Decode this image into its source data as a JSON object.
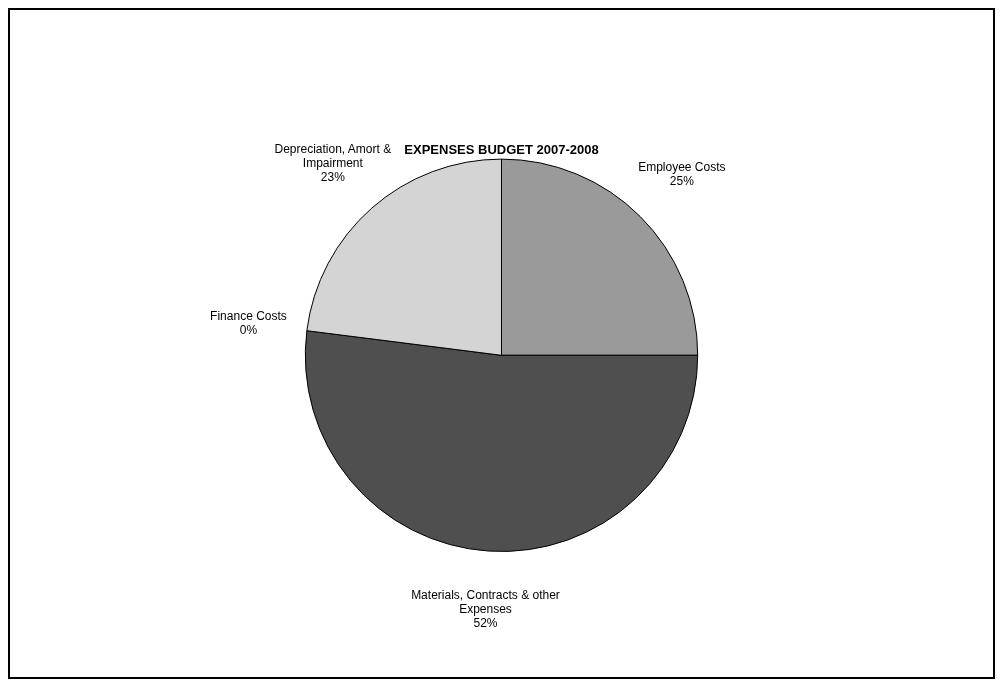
{
  "chart_data": {
    "type": "pie",
    "title": "EXPENSES BUDGET 2007-2008",
    "categories": [
      "Employee Costs",
      "Materials, Contracts & other Expenses",
      "Finance Costs",
      "Depreciation, Amort & Impairment"
    ],
    "values": [
      25,
      52,
      0,
      23
    ],
    "value_labels": [
      "25%",
      "52%",
      "0%",
      "23%"
    ],
    "colors": [
      "#9a9a9a",
      "#4f4f4f",
      "#777777",
      "#d4d4d4"
    ],
    "legend": false
  }
}
